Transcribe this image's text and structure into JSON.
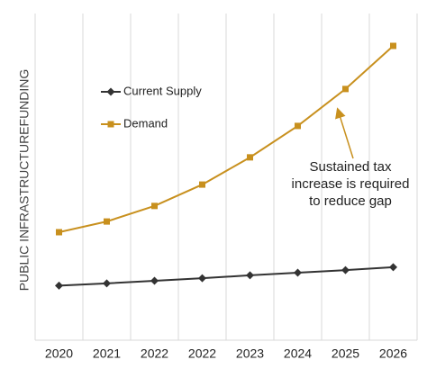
{
  "chart_data": {
    "type": "line",
    "y_label": "PUBLIC INFRASTRUCTUREFUNDING",
    "categories": [
      "2020",
      "2021",
      "2022",
      "2022",
      "2023",
      "2024",
      "2025",
      "2026"
    ],
    "series": [
      {
        "name": "Current Supply",
        "color": "#333333",
        "marker": "diamond",
        "values": [
          16,
          16.7,
          17.5,
          18.3,
          19.2,
          20,
          20.8,
          21.7
        ]
      },
      {
        "name": "Demand",
        "color": "#c8901e",
        "marker": "square",
        "values": [
          32.5,
          35.8,
          40.6,
          47.2,
          55.6,
          65.3,
          76.7,
          90
        ]
      }
    ],
    "ylim": [
      0,
      100
    ],
    "grid": true,
    "legend": "upper left",
    "annotation": [
      "Sustained tax",
      "increase is required",
      "to reduce gap"
    ]
  }
}
